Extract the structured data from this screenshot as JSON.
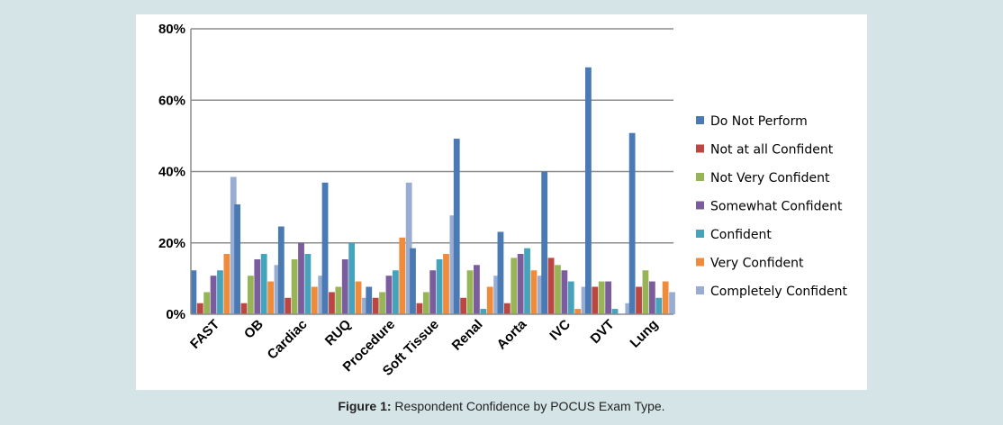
{
  "caption": {
    "label": "Figure 1:",
    "text": " Respondent Confidence by POCUS Exam Type."
  },
  "chart_data": {
    "type": "bar",
    "categories": [
      "FAST",
      "OB",
      "Cardiac",
      "RUQ",
      "Procedure",
      "Soft Tissue",
      "Renal",
      "Aorta",
      "IVC",
      "DVT",
      "Lung"
    ],
    "ylim": [
      0,
      80
    ],
    "yticks": [
      0,
      20,
      40,
      60,
      80
    ],
    "ytick_labels": [
      "0%",
      "20%",
      "40%",
      "60%",
      "80%"
    ],
    "grid": true,
    "legend_position": "right",
    "series": [
      {
        "name": "Do Not Perform",
        "color": "#4a7ab4",
        "values": [
          12.3,
          30.8,
          24.6,
          36.9,
          7.7,
          18.5,
          49.2,
          23.1,
          40.0,
          69.2,
          50.8
        ]
      },
      {
        "name": "Not at all Confident",
        "color": "#bc4641",
        "values": [
          3.1,
          3.1,
          4.6,
          6.2,
          4.6,
          3.1,
          4.6,
          3.1,
          15.8,
          7.7,
          7.7
        ]
      },
      {
        "name": "Not Very Confident",
        "color": "#97b556",
        "values": [
          6.2,
          10.8,
          15.4,
          7.7,
          6.2,
          6.2,
          12.3,
          15.8,
          13.8,
          9.2,
          12.3
        ]
      },
      {
        "name": "Somewhat Confident",
        "color": "#7b5c9d",
        "values": [
          10.8,
          15.4,
          20.0,
          15.4,
          10.8,
          12.3,
          13.8,
          16.9,
          12.3,
          9.2,
          9.2
        ]
      },
      {
        "name": "Confident",
        "color": "#45a4bc",
        "values": [
          12.3,
          16.9,
          16.9,
          20.0,
          12.3,
          15.4,
          1.5,
          18.5,
          9.2,
          1.5,
          4.6
        ]
      },
      {
        "name": "Very Confident",
        "color": "#ef8c3b",
        "values": [
          16.9,
          9.2,
          7.7,
          9.2,
          21.5,
          16.9,
          7.7,
          12.3,
          1.5,
          0,
          9.2
        ]
      },
      {
        "name": "Completely Confident",
        "color": "#99add3",
        "values": [
          38.5,
          13.8,
          10.8,
          4.6,
          36.9,
          27.7,
          10.8,
          10.8,
          7.7,
          3.1,
          6.2
        ]
      }
    ]
  }
}
